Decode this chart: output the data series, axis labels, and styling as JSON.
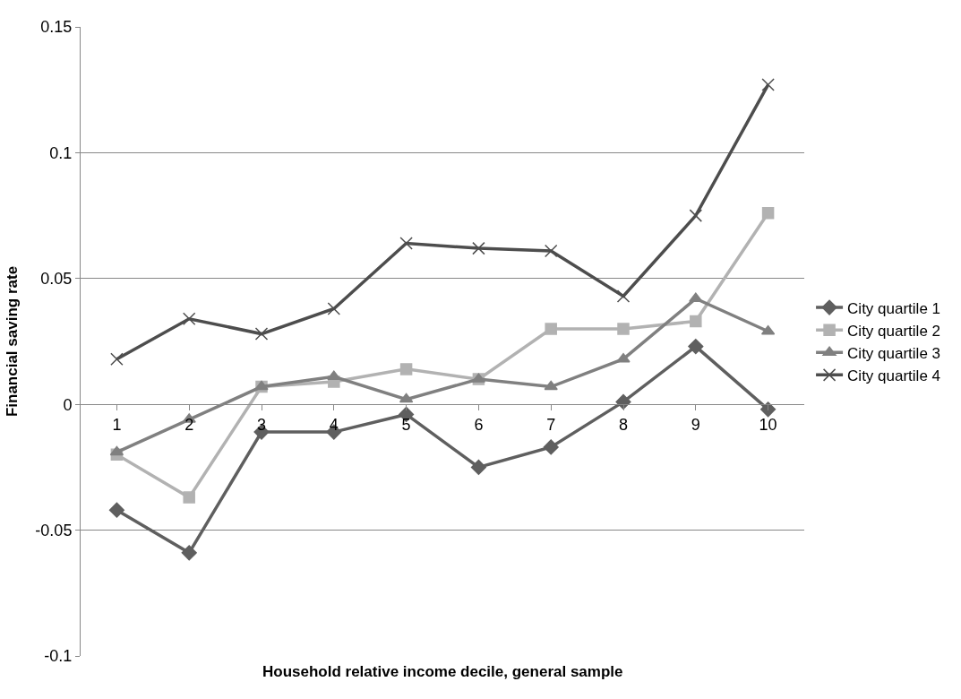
{
  "chart_data": {
    "type": "line",
    "xlabel": "Household relative income decile, general sample",
    "ylabel": "Financial saving rate",
    "categories": [
      "1",
      "2",
      "3",
      "4",
      "5",
      "6",
      "7",
      "8",
      "9",
      "10"
    ],
    "series": [
      {
        "name": "City quartile 1",
        "color": "#5f5f5f",
        "marker": "diamond",
        "values": [
          -0.042,
          -0.059,
          -0.011,
          -0.011,
          -0.004,
          -0.025,
          -0.017,
          0.001,
          0.023,
          -0.002
        ]
      },
      {
        "name": "City quartile 2",
        "color": "#b2b2b2",
        "marker": "square",
        "values": [
          -0.02,
          -0.037,
          0.007,
          0.009,
          0.014,
          0.01,
          0.03,
          0.03,
          0.033,
          0.076
        ]
      },
      {
        "name": "City quartile 3",
        "color": "#808080",
        "marker": "triangle",
        "values": [
          -0.019,
          -0.006,
          0.007,
          0.011,
          0.002,
          0.01,
          0.007,
          0.018,
          0.042,
          0.029
        ]
      },
      {
        "name": "City quartile 4",
        "color": "#4d4d4d",
        "marker": "cross",
        "values": [
          0.018,
          0.034,
          0.028,
          0.038,
          0.064,
          0.062,
          0.061,
          0.043,
          0.075,
          0.127
        ]
      }
    ],
    "ylim": [
      -0.1,
      0.15
    ],
    "yticks": [
      -0.1,
      -0.05,
      0,
      0.05,
      0.1,
      0.15
    ],
    "grid": "y",
    "legend": "right",
    "line_style": "solid"
  }
}
